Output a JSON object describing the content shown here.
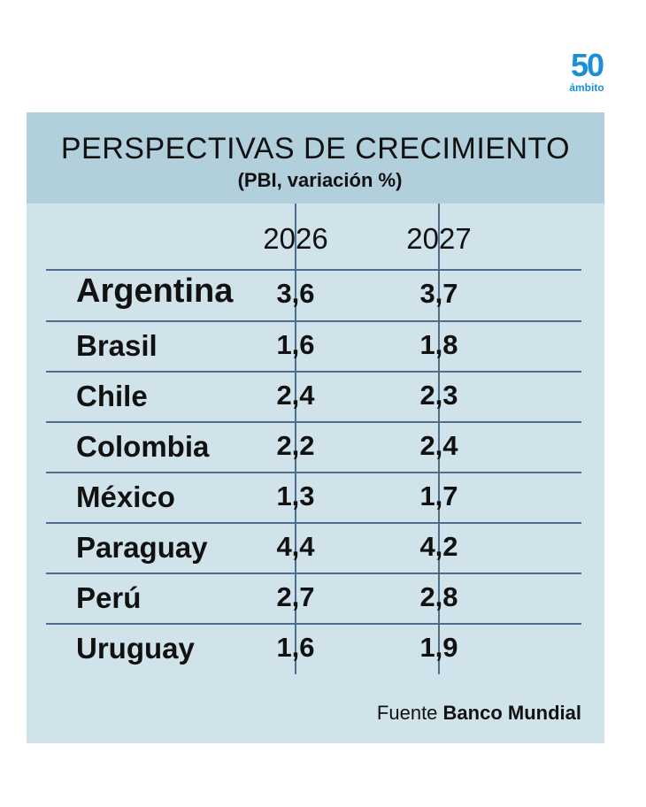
{
  "logo": {
    "number": "50",
    "brand": "ámbito",
    "color": "#1a8fd8"
  },
  "colors": {
    "header_bg": "#b2cfdc",
    "body_bg": "#d0e3ea",
    "grid": "#4f6d8c"
  },
  "chart_data": {
    "type": "table",
    "title": "PERSPECTIVAS DE CRECIMIENTO",
    "subtitle": "(PBI, variación %)",
    "columns": [
      "2026",
      "2027"
    ],
    "rows": [
      {
        "country": "Argentina",
        "values": [
          "3,6",
          "3,7"
        ],
        "highlight": true
      },
      {
        "country": "Brasil",
        "values": [
          "1,6",
          "1,8"
        ]
      },
      {
        "country": "Chile",
        "values": [
          "2,4",
          "2,3"
        ]
      },
      {
        "country": "Colombia",
        "values": [
          "2,2",
          "2,4"
        ]
      },
      {
        "country": "México",
        "values": [
          "1,3",
          "1,7"
        ]
      },
      {
        "country": "Paraguay",
        "values": [
          "4,4",
          "4,2"
        ]
      },
      {
        "country": "Perú",
        "values": [
          "2,7",
          "2,8"
        ]
      },
      {
        "country": "Uruguay",
        "values": [
          "1,6",
          "1,9"
        ]
      }
    ],
    "source_label": "Fuente",
    "source": "Banco Mundial"
  }
}
